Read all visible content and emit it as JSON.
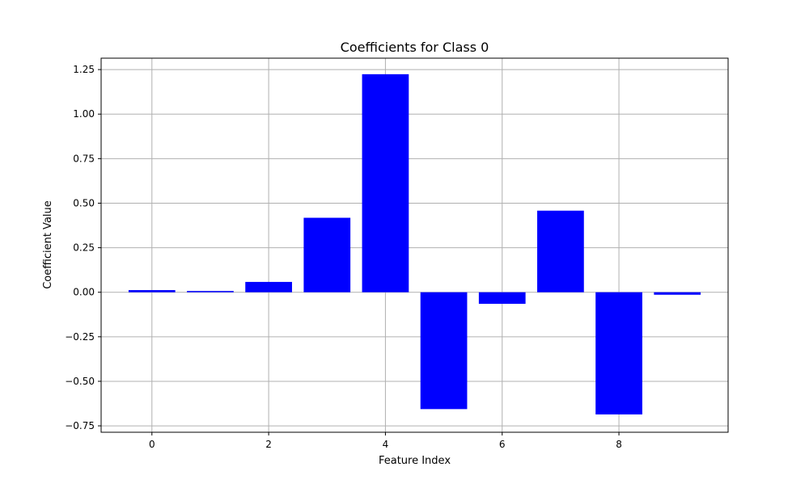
{
  "chart_data": {
    "type": "bar",
    "title": "Coefficients for Class 0",
    "xlabel": "Feature Index",
    "ylabel": "Coefficient Value",
    "categories": [
      0,
      1,
      2,
      3,
      4,
      5,
      6,
      7,
      8,
      9
    ],
    "values": [
      0.012,
      0.007,
      0.058,
      0.418,
      1.224,
      -0.656,
      -0.065,
      0.458,
      -0.686,
      -0.014
    ],
    "xlim": [
      -0.87,
      9.87
    ],
    "ylim": [
      -0.786,
      1.314
    ],
    "xticks": [
      0,
      2,
      4,
      6,
      8
    ],
    "yticks": [
      1.25,
      1.0,
      0.75,
      0.5,
      0.25,
      0.0,
      -0.25,
      -0.5,
      -0.75
    ],
    "ytick_labels": [
      "1.25",
      "1.00",
      "0.75",
      "0.50",
      "0.25",
      "0.00",
      "−0.25",
      "−0.50",
      "−0.75"
    ],
    "grid": true,
    "bar_color": "#0000ff",
    "grid_color": "#b0b0b0"
  }
}
